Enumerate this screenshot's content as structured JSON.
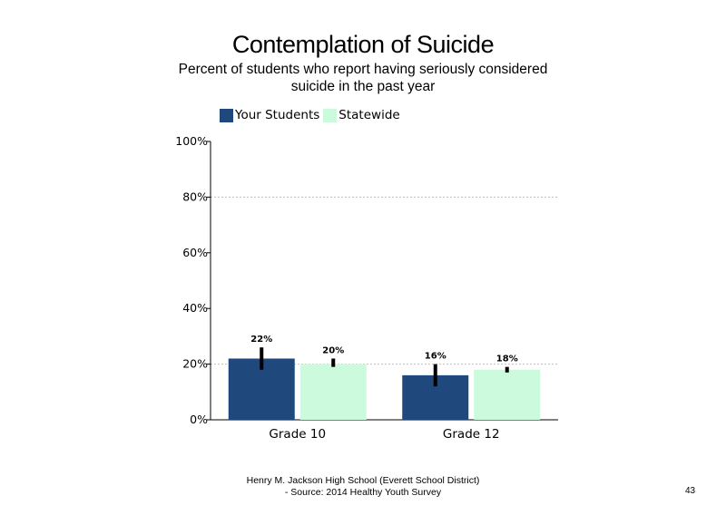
{
  "title": "Contemplation of Suicide",
  "subtitle": "Percent of students who report having seriously considered suicide in the past year",
  "footer": {
    "line1": "Henry M. Jackson High School (Everett School District)",
    "line2": "- Source: 2014 Healthy Youth Survey"
  },
  "page_number": "43",
  "colors": {
    "your_students": "#1f497d",
    "statewide": "#ccfadc",
    "error_bar": "#000000",
    "grid": "#bfbfbf"
  },
  "chart_data": {
    "type": "bar",
    "title": "Contemplation of Suicide",
    "subtitle": "Percent of students who report having seriously considered suicide in the past year",
    "categories": [
      "Grade 10",
      "Grade 12"
    ],
    "series": [
      {
        "name": "Your Students",
        "values": [
          22,
          16
        ],
        "labels": [
          "22%",
          "16%"
        ],
        "error_low": [
          18,
          12
        ],
        "error_high": [
          26,
          20
        ]
      },
      {
        "name": "Statewide",
        "values": [
          20,
          18
        ],
        "labels": [
          "20%",
          "18%"
        ],
        "error_low": [
          19,
          17
        ],
        "error_high": [
          22,
          19
        ]
      }
    ],
    "ylim": [
      0,
      100
    ],
    "yticks": [
      0,
      20,
      40,
      60,
      80,
      100
    ],
    "ytick_labels": [
      "0%",
      "20%",
      "40%",
      "60%",
      "80%",
      "100%"
    ],
    "grid": "dotted horizontal at 20% and 80%",
    "legend_position": "top-left"
  }
}
